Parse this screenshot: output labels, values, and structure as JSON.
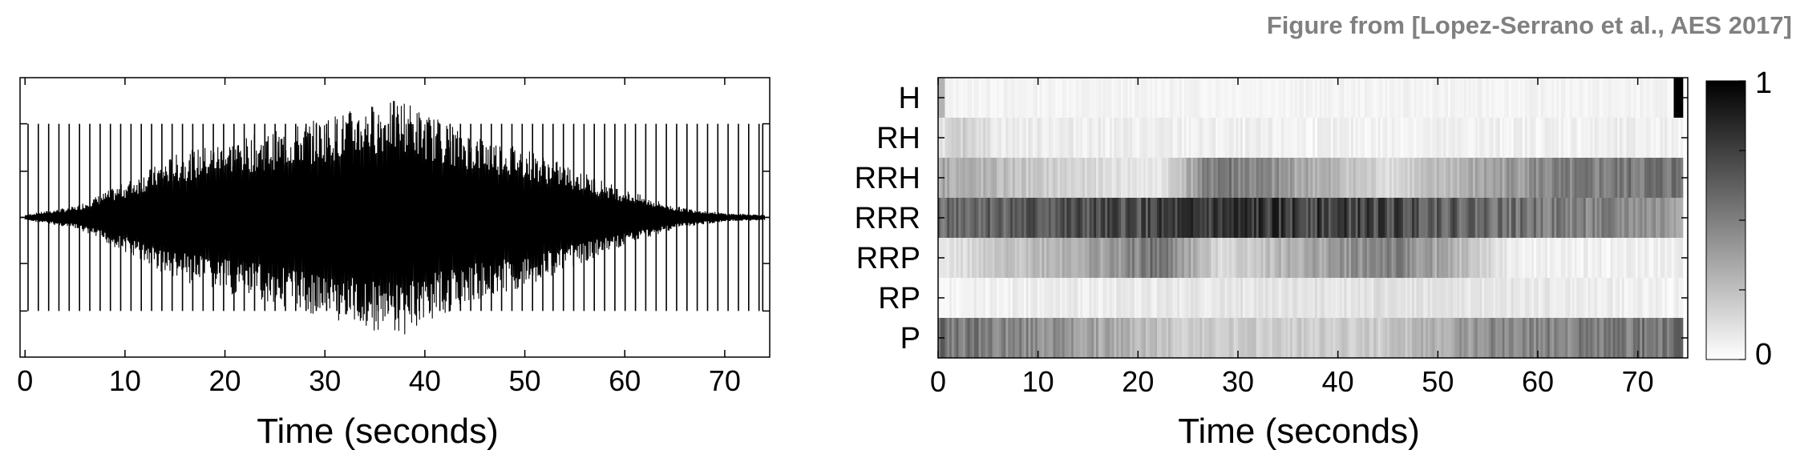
{
  "credit": "Figure from [Lopez-Serrano et al., AES 2017]",
  "chart_data": [
    {
      "type": "line",
      "subtype": "waveform",
      "title": "",
      "xlabel": "Time (seconds)",
      "ylabel": "",
      "xlim": [
        -0.5,
        74.5
      ],
      "ylim": [
        -1,
        1
      ],
      "xticks": [
        0,
        10,
        20,
        30,
        40,
        50,
        60,
        70
      ],
      "grid": false,
      "description_of_signal": "Percussive onsets roughly every 1 s; dense oscillation envelope growing from ~5 s, peaking around 35-40 s and fading by ~60 s",
      "envelope": {
        "x": [
          0,
          5,
          10,
          15,
          20,
          25,
          30,
          35,
          38,
          40,
          45,
          50,
          55,
          60,
          65,
          70,
          74
        ],
        "amplitude": [
          0.02,
          0.08,
          0.25,
          0.45,
          0.55,
          0.62,
          0.72,
          0.82,
          0.85,
          0.75,
          0.6,
          0.5,
          0.35,
          0.2,
          0.08,
          0.03,
          0.02
        ]
      },
      "onset_peak_amplitude": 0.67
    },
    {
      "type": "heatmap",
      "title": "",
      "xlabel": "Time (seconds)",
      "ylabel": "",
      "xlim": [
        0,
        75
      ],
      "xticks": [
        0,
        10,
        20,
        30,
        40,
        50,
        60,
        70
      ],
      "rows": [
        "H",
        "RH",
        "RRH",
        "RRR",
        "RRP",
        "RP",
        "P"
      ],
      "colorbar": {
        "min": 0,
        "max": 1,
        "labels": [
          "0",
          "1"
        ],
        "colormap": "gray-reversed (white = 0, black = 1)"
      },
      "segments": {
        "H": [
          {
            "t": 0,
            "v": 0.02
          },
          {
            "t": 74,
            "v": 1.0
          }
        ],
        "RH": [
          {
            "t": 0,
            "v": 0.1
          },
          {
            "t": 3,
            "v": 0.2
          },
          {
            "t": 6,
            "v": 0.08
          },
          {
            "t": 30,
            "v": 0.05
          },
          {
            "t": 74,
            "v": 0.06
          }
        ],
        "RRH": [
          {
            "t": 0,
            "v": 0.35
          },
          {
            "t": 10,
            "v": 0.2
          },
          {
            "t": 22,
            "v": 0.08
          },
          {
            "t": 28,
            "v": 0.55
          },
          {
            "t": 45,
            "v": 0.15
          },
          {
            "t": 60,
            "v": 0.45
          },
          {
            "t": 74,
            "v": 0.55
          }
        ],
        "RRR": [
          {
            "t": 0,
            "v": 0.6
          },
          {
            "t": 20,
            "v": 0.7
          },
          {
            "t": 30,
            "v": 0.78
          },
          {
            "t": 45,
            "v": 0.72
          },
          {
            "t": 58,
            "v": 0.55
          },
          {
            "t": 74,
            "v": 0.4
          }
        ],
        "RRP": [
          {
            "t": 0,
            "v": 0.08
          },
          {
            "t": 8,
            "v": 0.25
          },
          {
            "t": 18,
            "v": 0.4
          },
          {
            "t": 22,
            "v": 0.55
          },
          {
            "t": 28,
            "v": 0.15
          },
          {
            "t": 45,
            "v": 0.5
          },
          {
            "t": 50,
            "v": 0.35
          },
          {
            "t": 58,
            "v": 0.05
          },
          {
            "t": 74,
            "v": 0.06
          }
        ],
        "RP": [
          {
            "t": 0,
            "v": 0.05
          },
          {
            "t": 45,
            "v": 0.12
          },
          {
            "t": 74,
            "v": 0.05
          }
        ],
        "P": [
          {
            "t": 0,
            "v": 0.55
          },
          {
            "t": 10,
            "v": 0.45
          },
          {
            "t": 25,
            "v": 0.2
          },
          {
            "t": 45,
            "v": 0.2
          },
          {
            "t": 55,
            "v": 0.45
          },
          {
            "t": 74,
            "v": 0.55
          }
        ]
      }
    }
  ]
}
